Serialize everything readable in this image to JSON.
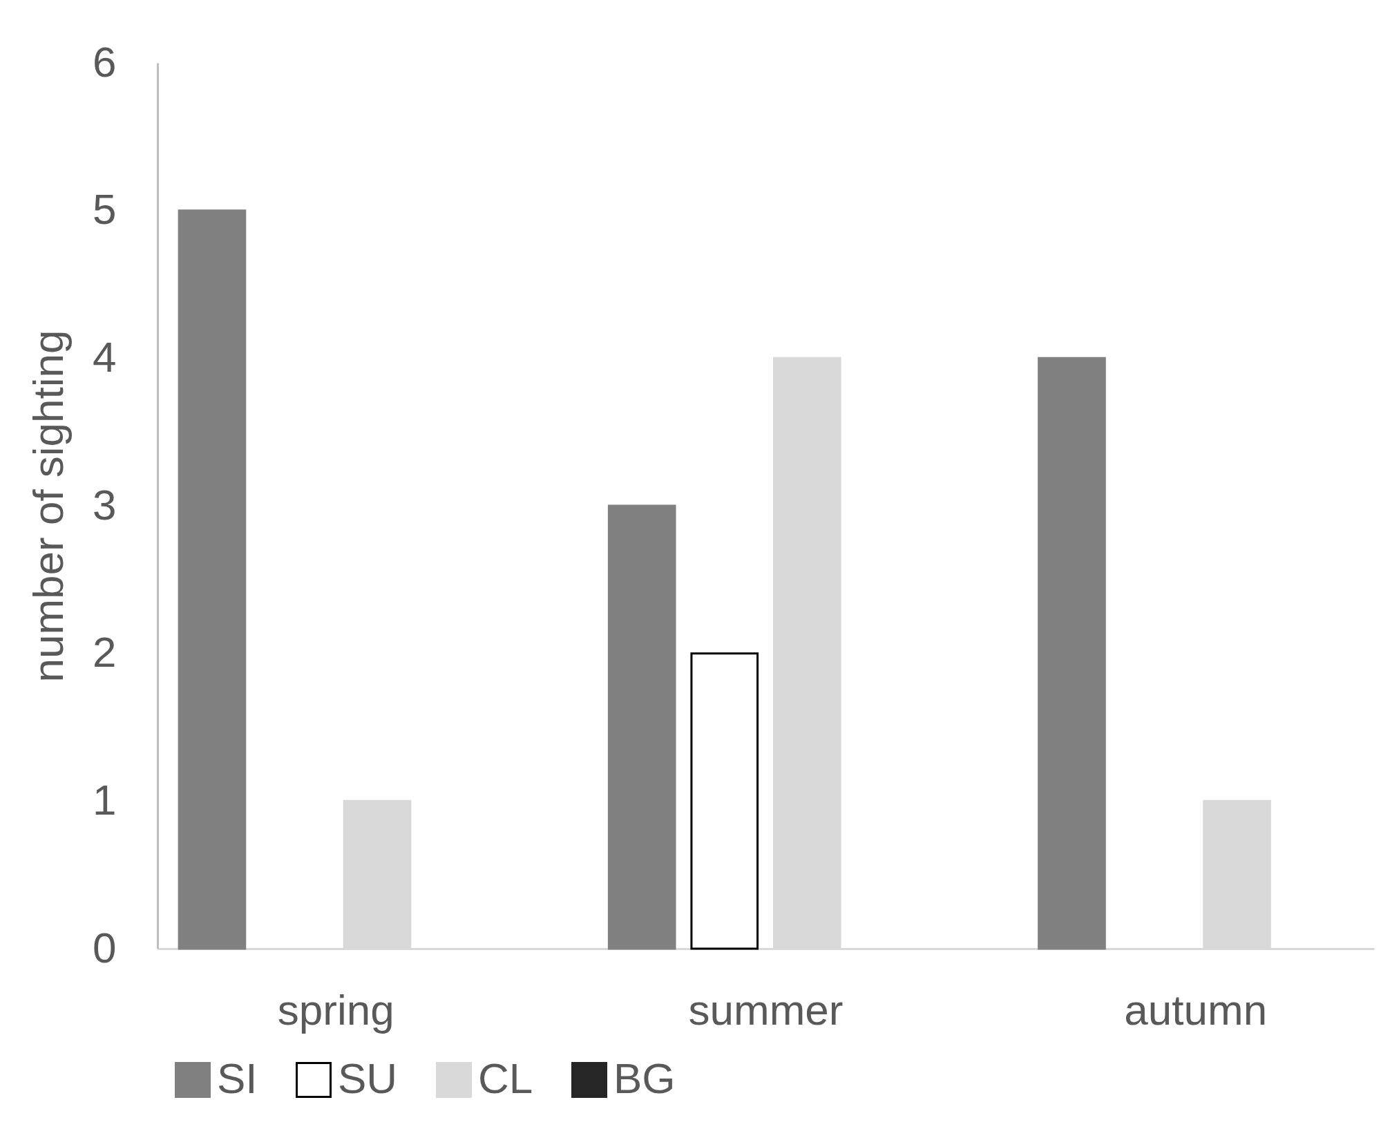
{
  "chart_data": {
    "type": "bar",
    "ylabel": "number of sighting",
    "categories": [
      "spring",
      "summer",
      "autumn"
    ],
    "series": [
      {
        "name": "SI",
        "color": "#808080",
        "values": [
          5,
          3,
          4
        ]
      },
      {
        "name": "SU",
        "color": "#ffffff",
        "values": [
          0,
          2,
          0
        ]
      },
      {
        "name": "CL",
        "color": "#d9d9d9",
        "values": [
          1,
          4,
          1
        ]
      },
      {
        "name": "BG",
        "color": "#262626",
        "values": [
          0,
          0,
          0
        ]
      }
    ],
    "ylim": [
      0,
      6
    ],
    "yticks": [
      0,
      1,
      2,
      3,
      4,
      5,
      6
    ],
    "grid": false,
    "legend": "bottom"
  }
}
